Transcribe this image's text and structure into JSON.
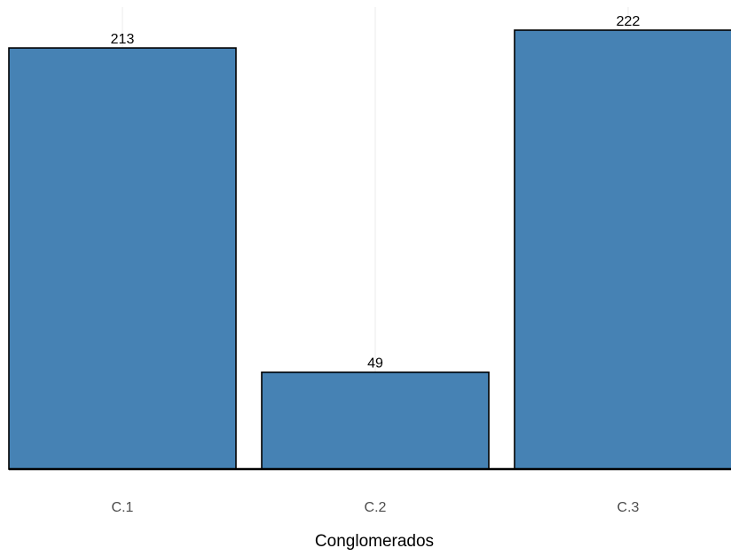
{
  "chart_data": {
    "type": "bar",
    "categories": [
      "C.1",
      "C.2",
      "C.3"
    ],
    "values": [
      213,
      49,
      222
    ],
    "xlabel": "Conglomerados",
    "ylabel": "",
    "ylim": [
      0,
      222
    ],
    "grid": "vertical",
    "bar_color": "#4682B4",
    "bar_outline_color": "#000000",
    "grid_color": "#ebebeb",
    "data_labels": [
      "213",
      "49",
      "222"
    ]
  }
}
